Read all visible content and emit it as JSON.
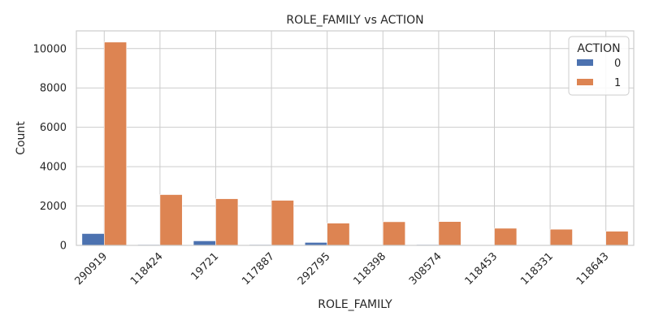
{
  "chart_data": {
    "type": "bar",
    "title": "ROLE_FAMILY vs ACTION",
    "xlabel": "ROLE_FAMILY",
    "ylabel": "Count",
    "categories": [
      "290919",
      "118424",
      "19721",
      "117887",
      "292795",
      "118398",
      "308574",
      "118453",
      "118331",
      "118643"
    ],
    "series": [
      {
        "name": "0",
        "color": "#4c72b0",
        "values": [
          600,
          40,
          230,
          40,
          150,
          30,
          40,
          20,
          15,
          20
        ]
      },
      {
        "name": "1",
        "color": "#dd8452",
        "values": [
          10330,
          2580,
          2370,
          2290,
          1130,
          1200,
          1210,
          870,
          820,
          720
        ]
      }
    ],
    "ylim": [
      0,
      10900
    ],
    "yticks": [
      0,
      2000,
      4000,
      6000,
      8000,
      10000
    ],
    "grid": true,
    "legend": {
      "title": "ACTION",
      "placement": "top-right"
    }
  }
}
